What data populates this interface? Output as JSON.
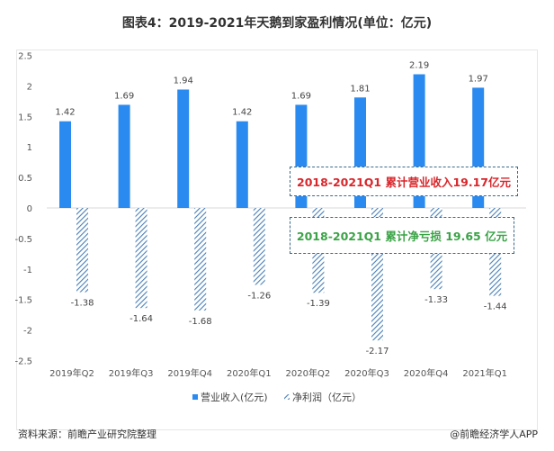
{
  "title": "图表4：2019-2021年天鹅到家盈利情况(单位：亿元)",
  "source": "资料来源：前瞻产业研究院整理",
  "credit": "@前瞻经济学人APP",
  "annotations": [
    {
      "text": "2018-2021Q1 累计营业收入19.17亿元",
      "color": "#d9262b"
    },
    {
      "text": "2018-2021Q1 累计净亏损 19.65 亿元",
      "color": "#3aa346"
    }
  ],
  "colors": {
    "revenue": "#2a8af0",
    "profit": "#4a7fb5"
  },
  "chart_data": {
    "type": "bar",
    "categories": [
      "2019年Q2",
      "2019年Q3",
      "2019年Q4",
      "2020年Q1",
      "2020年Q2",
      "2020年Q3",
      "2020年Q4",
      "2021年Q1"
    ],
    "series": [
      {
        "name": "营业收入(亿元)",
        "values": [
          1.42,
          1.69,
          1.94,
          1.42,
          1.69,
          1.81,
          2.19,
          1.97
        ],
        "style": "solid"
      },
      {
        "name": "净利润（亿元）",
        "values": [
          -1.38,
          -1.64,
          -1.68,
          -1.26,
          -1.39,
          -2.17,
          -1.33,
          -1.44
        ],
        "style": "hatched"
      }
    ],
    "yticks": [
      2.5,
      2,
      1.5,
      1,
      0.5,
      0,
      -0.5,
      -1,
      -1.5,
      -2,
      -2.5
    ],
    "ylim": [
      -2.5,
      2.5
    ],
    "grid": false,
    "legend": "bottom"
  }
}
